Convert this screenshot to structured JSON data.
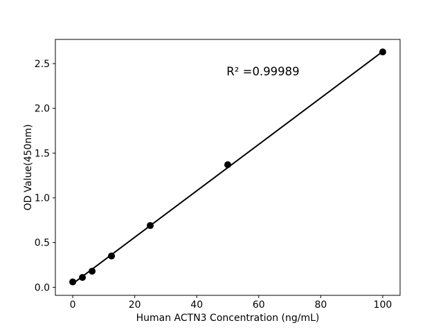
{
  "figure": {
    "background": "#ffffff",
    "foreground": "#000000"
  },
  "chart_data": {
    "type": "scatter",
    "title": "",
    "xlabel": "Human ACTN3 Concentration (ng/mL)",
    "ylabel": "OD Value(450nm)",
    "annotation": {
      "text": "R² =0.99989",
      "r_squared": 0.99989
    },
    "x": [
      0,
      3.125,
      6.25,
      12.5,
      25,
      50,
      100
    ],
    "y": [
      0.06,
      0.11,
      0.18,
      0.35,
      0.69,
      1.37,
      2.63
    ],
    "trendline": {
      "x": [
        0,
        100
      ],
      "y": [
        0.04,
        2.635
      ]
    },
    "xlim": [
      -5.6,
      105.6
    ],
    "ylim": [
      -0.09,
      2.77
    ],
    "xticks": [
      0,
      20,
      40,
      60,
      80,
      100
    ],
    "xtick_labels": [
      "0",
      "20",
      "40",
      "60",
      "80",
      "100"
    ],
    "yticks": [
      0.0,
      0.5,
      1.0,
      1.5,
      2.0,
      2.5
    ],
    "ytick_labels": [
      "0.0",
      "0.5",
      "1.0",
      "1.5",
      "2.0",
      "2.5"
    ],
    "grid": false,
    "legend": null,
    "marker_color": "#000000",
    "line_color": "#000000",
    "axis_color": "#000000"
  }
}
